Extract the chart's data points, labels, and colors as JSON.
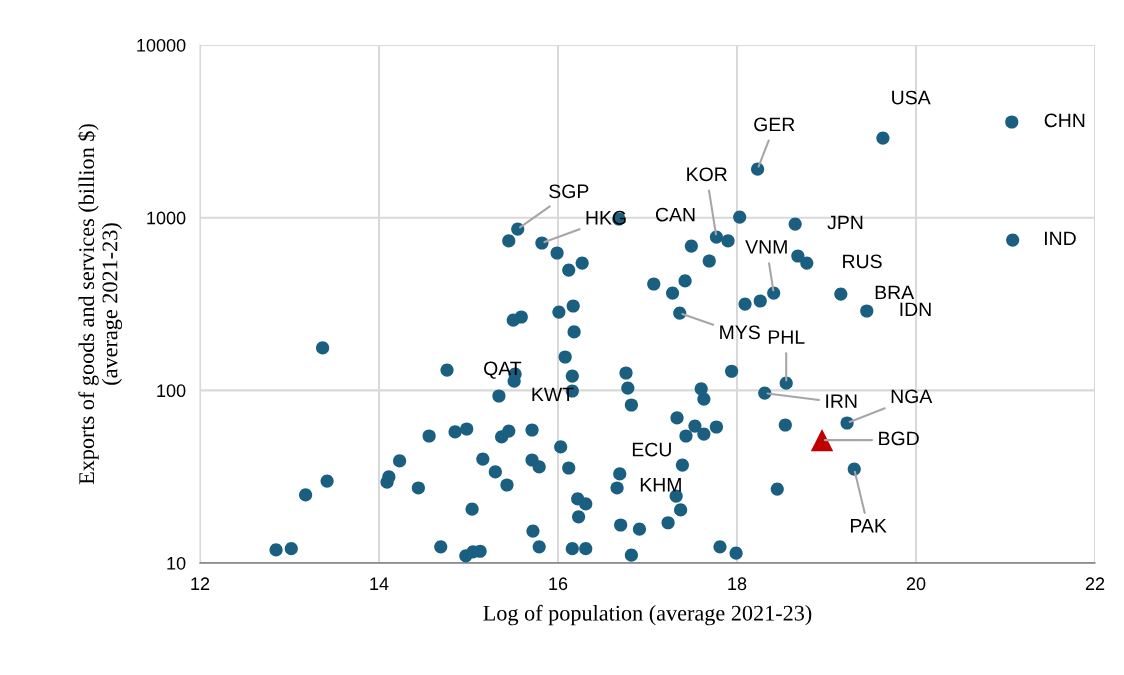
{
  "chart_data": {
    "type": "scatter",
    "xlabel": "Log of population (average 2021-23)",
    "ylabel": "Exports of goods and services (billion $)\n(average 2021-23)",
    "log": true,
    "grid": true,
    "xlim": [
      12,
      22
    ],
    "xticks": [
      12,
      14,
      16,
      18,
      20,
      22
    ],
    "ylim": [
      10,
      10000
    ],
    "yticks": [
      10,
      100,
      1000,
      10000
    ],
    "series": [
      {
        "color": "#1a5f80",
        "marker": "circle",
        "x": [
          12.85,
          13.02,
          13.18,
          13.42,
          13.37,
          14.09,
          14.11,
          14.23,
          14.44,
          14.56,
          14.69,
          14.76,
          14.85,
          14.98,
          14.97,
          15.05,
          15.13,
          15.04,
          15.16,
          15.3,
          15.34,
          15.37,
          15.45,
          15.43,
          15.5,
          15.59,
          15.52,
          15.51,
          15.45,
          15.55,
          15.71,
          15.71,
          15.79,
          15.72,
          15.79,
          15.82,
          15.99,
          16.01,
          16.03,
          16.08,
          16.12,
          16.12,
          16.16,
          16.16,
          16.16,
          16.17,
          16.18,
          16.22,
          16.31,
          16.23,
          16.27,
          16.31,
          16.66,
          16.69,
          16.7,
          16.68,
          16.76,
          16.78,
          16.82,
          16.82,
          16.91,
          17.07,
          17.28,
          17.42,
          17.36,
          17.49,
          17.23,
          17.32,
          17.37,
          17.39,
          17.33,
          17.43,
          17.53,
          17.63,
          17.6,
          17.63,
          17.77,
          17.69,
          17.77,
          17.9,
          18.03,
          17.81,
          17.99,
          17.94,
          18.09,
          18.26,
          18.41,
          18.23,
          18.31,
          18.55,
          18.54,
          18.45,
          18.65,
          18.68,
          18.78,
          19.16,
          19.45,
          19.23,
          19.31,
          19.63,
          21.07,
          21.08
        ],
        "values": [
          11.9,
          12.1,
          24.8,
          29.8,
          176,
          29.4,
          31.5,
          39.0,
          27.2,
          54.4,
          12.4,
          131,
          57.4,
          59.7,
          11.0,
          11.6,
          11.7,
          20.5,
          40.0,
          33.7,
          92.7,
          53.7,
          58.1,
          28.3,
          255,
          266,
          124,
          113,
          733,
          859,
          58.9,
          39.5,
          36.0,
          15.3,
          12.4,
          713,
          624,
          284,
          47.0,
          156,
          497,
          35.5,
          121,
          99.1,
          12.1,
          308,
          218,
          23.5,
          22.0,
          18.5,
          546,
          12.1,
          27.2,
          32.8,
          16.6,
          982,
          126,
          103,
          82.2,
          11.1,
          15.7,
          413,
          366,
          430,
          280,
          685,
          17.1,
          24.4,
          20.3,
          36.9,
          69.2,
          54.4,
          62.1,
          55.8,
          102,
          89.0,
          61.3,
          561,
          772,
          733,
          1008,
          12.4,
          11.4,
          129,
          316,
          329,
          366,
          1910,
          96.4,
          110,
          63.0,
          26.8,
          918,
          600,
          546,
          361,
          288,
          64.7,
          35.0,
          2890,
          3580,
          742
        ]
      },
      {
        "color": "#c00000",
        "marker": "triangle",
        "x": [
          18.95
        ],
        "values": [
          51.5
        ]
      }
    ],
    "annotations": [
      {
        "text": "USA",
        "x": 19.63,
        "y": 2890
      },
      {
        "text": "CHN",
        "x": 21.07,
        "y": 3580
      },
      {
        "text": "IND",
        "x": 21.08,
        "y": 742
      },
      {
        "text": "GER",
        "x": 18.23,
        "y": 1910
      },
      {
        "text": "JPN",
        "x": 18.65,
        "y": 918
      },
      {
        "text": "KOR",
        "x": 17.77,
        "y": 772
      },
      {
        "text": "CAN",
        "x": 16.68,
        "y": 982
      },
      {
        "text": "SGP",
        "x": 15.55,
        "y": 859
      },
      {
        "text": "HKG",
        "x": 15.82,
        "y": 713
      },
      {
        "text": "VNM",
        "x": 18.41,
        "y": 366
      },
      {
        "text": "RUS",
        "x": 18.78,
        "y": 546
      },
      {
        "text": "BRA",
        "x": 19.16,
        "y": 361
      },
      {
        "text": "IDN",
        "x": 19.45,
        "y": 288
      },
      {
        "text": "MYS",
        "x": 17.36,
        "y": 280
      },
      {
        "text": "PHL",
        "x": 18.55,
        "y": 110
      },
      {
        "text": "IRN",
        "x": 18.31,
        "y": 96.4
      },
      {
        "text": "NGA",
        "x": 19.23,
        "y": 64.7
      },
      {
        "text": "BGD",
        "x": 18.95,
        "y": 51.5
      },
      {
        "text": "PAK",
        "x": 19.31,
        "y": 35.0
      },
      {
        "text": "ECU",
        "x": 17.39,
        "y": 36.9
      },
      {
        "text": "KHM",
        "x": 17.32,
        "y": 24.4
      },
      {
        "text": "QAT",
        "x": 14.76,
        "y": 131
      },
      {
        "text": "KWT",
        "x": 15.34,
        "y": 92.7
      }
    ]
  }
}
